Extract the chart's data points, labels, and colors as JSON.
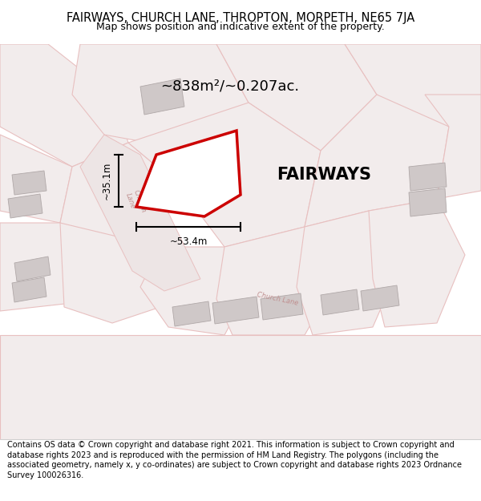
{
  "title_line1": "FAIRWAYS, CHURCH LANE, THROPTON, MORPETH, NE65 7JA",
  "title_line2": "Map shows position and indicative extent of the property.",
  "footer_text": "Contains OS data © Crown copyright and database right 2021. This information is subject to Crown copyright and database rights 2023 and is reproduced with the permission of HM Land Registry. The polygons (including the associated geometry, namely x, y co-ordinates) are subject to Crown copyright and database rights 2023 Ordnance Survey 100026316.",
  "area_label": "~838m²/~0.207ac.",
  "property_label": "FAIRWAYS",
  "dim_width": "~53.4m",
  "dim_height": "~35.1m",
  "bg_color": "#ffffff",
  "map_bg": "#f7f2f2",
  "road_color": "#e8c0c0",
  "building_color": "#cfc8c8",
  "highlight_color": "#cc0000",
  "green_area_color": "#cde0cd",
  "title_fontsize": 10.5,
  "title2_fontsize": 9,
  "footer_fontsize": 7,
  "area_fontsize": 13,
  "property_label_fontsize": 15
}
